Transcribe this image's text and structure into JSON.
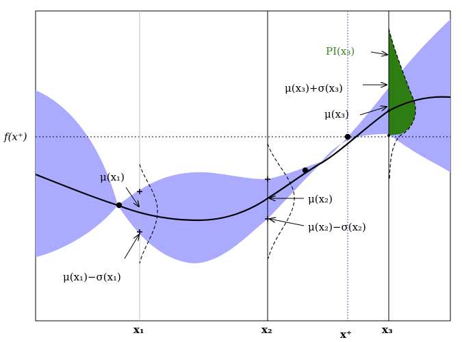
{
  "diagram": {
    "y_axis_label": "f(x⁺)",
    "x_tick_labels": {
      "x1": "x₁",
      "x2": "x₂",
      "xplus": "x⁺",
      "x3": "x₃"
    },
    "annotations": {
      "mu_x1": "μ(x₁)",
      "mu_minus_sigma_x1": "μ(x₁)−σ(x₁)",
      "mu_x2": "μ(x₂)",
      "mu_minus_sigma_x2": "μ(x₂)−σ(x₂)",
      "pi_x3": "PI(x₃)",
      "mu_plus_sigma_x3": "μ(x₃)+σ(x₃)",
      "mu_x3": "μ(x₃)"
    },
    "colors": {
      "band": "#aaaaff",
      "mean": "#000000",
      "pi_area": "#2e7d12",
      "pi_label": "#3a8a1a",
      "xplus_line": "#4b4bd6"
    }
  }
}
